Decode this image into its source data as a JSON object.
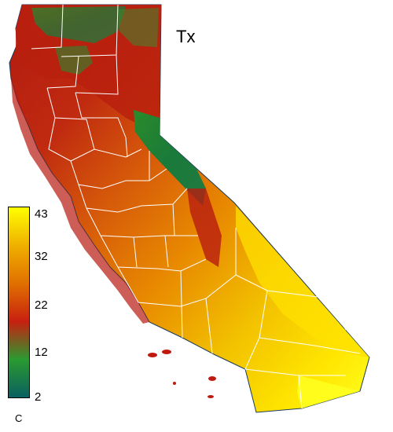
{
  "map": {
    "title": "Tx",
    "colors": {
      "hot": "#ffff00",
      "warm": "#f5a300",
      "mid": "#e06a00",
      "red": "#c01a10",
      "green": "#2a9030",
      "teal": "#0a6a6a",
      "boundary": "#ffffff"
    }
  },
  "legend": {
    "ticks": [
      "43",
      "32",
      "22",
      "12",
      "2"
    ],
    "unit": "C",
    "stops": [
      "#ffff00",
      "#f0b000",
      "#e07000",
      "#c82010",
      "#2a9a30",
      "#0a6060"
    ]
  }
}
